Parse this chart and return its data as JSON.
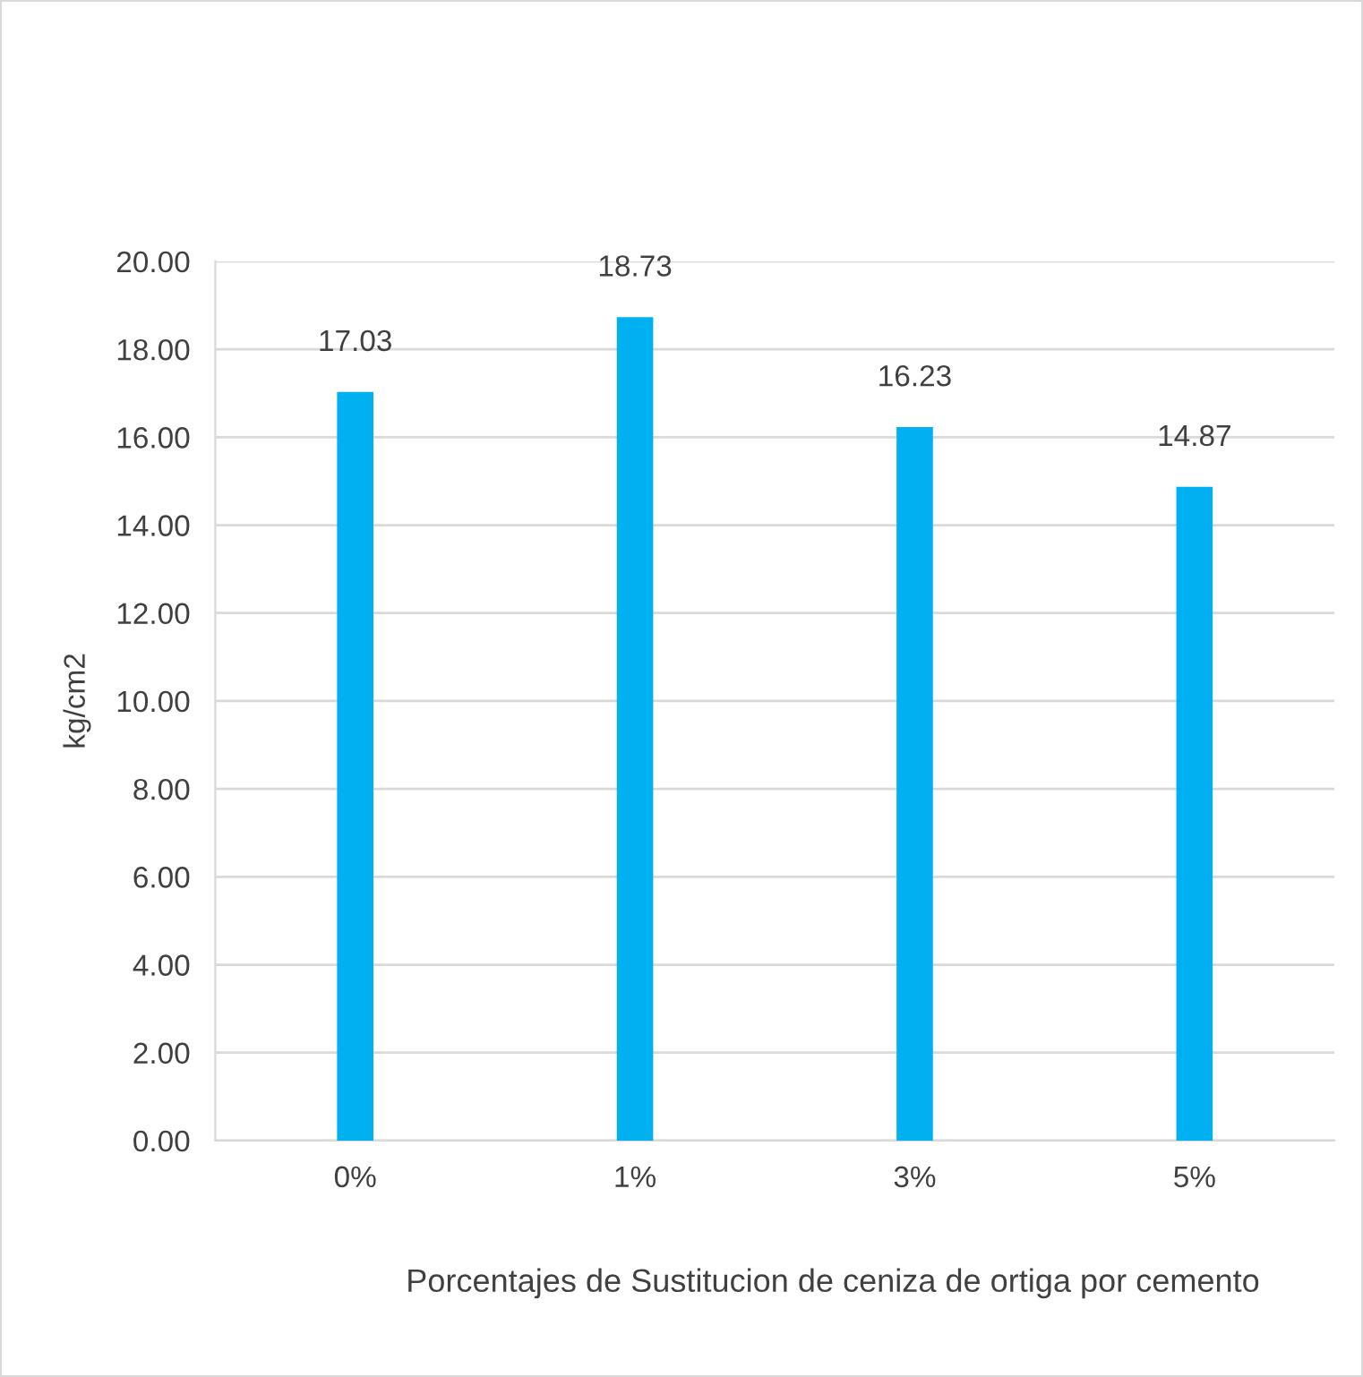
{
  "chart_data": {
    "type": "bar",
    "ylabel": "kg/cm2",
    "xlabel": "Porcentajes de Sustitucion de ceniza de ortiga por cemento",
    "categories": [
      "0%",
      "1%",
      "3%",
      "5%"
    ],
    "values": [
      17.03,
      18.73,
      16.23,
      14.87
    ],
    "color": "#00b0f0",
    "ylim": [
      0,
      20
    ],
    "yticks": [
      {
        "value": 0,
        "label": "0.00"
      },
      {
        "value": 2,
        "label": "2.00"
      },
      {
        "value": 4,
        "label": "4.00"
      },
      {
        "value": 6,
        "label": "6.00"
      },
      {
        "value": 8,
        "label": "8.00"
      },
      {
        "value": 10,
        "label": "10.00"
      },
      {
        "value": 12,
        "label": "12.00"
      },
      {
        "value": 14,
        "label": "14.00"
      },
      {
        "value": 16,
        "label": "16.00"
      },
      {
        "value": 18,
        "label": "18.00"
      },
      {
        "value": 20,
        "label": "20.00"
      }
    ],
    "grid": "y",
    "data_labels": true
  }
}
